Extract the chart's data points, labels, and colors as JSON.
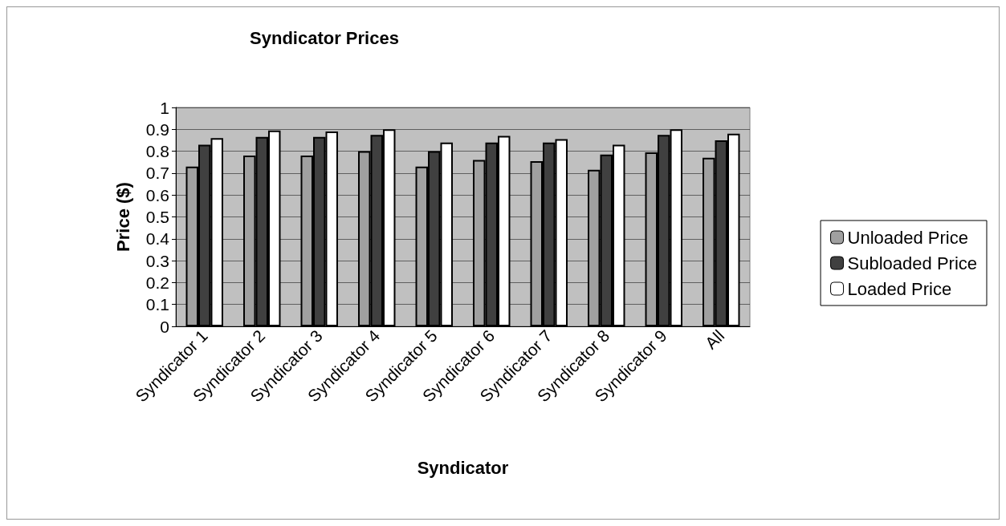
{
  "chart_data": {
    "type": "bar",
    "title": "Syndicator Prices",
    "xlabel": "Syndicator",
    "ylabel": "Price ($)",
    "categories": [
      "Syndicator 1",
      "Syndicator 2",
      "Syndicator 3",
      "Syndicator 4",
      "Syndicator 5",
      "Syndicator 6",
      "Syndicator 7",
      "Syndicator 8",
      "Syndicator 9",
      "All"
    ],
    "series": [
      {
        "name": "Unloaded Price",
        "color": "#a0a0a0",
        "values": [
          0.73,
          0.78,
          0.78,
          0.8,
          0.73,
          0.76,
          0.755,
          0.715,
          0.795,
          0.77
        ]
      },
      {
        "name": "Subloaded Price",
        "color": "#404040",
        "values": [
          0.83,
          0.865,
          0.865,
          0.875,
          0.8,
          0.84,
          0.84,
          0.785,
          0.875,
          0.85
        ]
      },
      {
        "name": "Loaded Price",
        "color": "#ffffff",
        "values": [
          0.86,
          0.895,
          0.89,
          0.9,
          0.84,
          0.87,
          0.855,
          0.83,
          0.9,
          0.88
        ]
      }
    ],
    "ylim": [
      0,
      1
    ],
    "yticks": [
      0,
      0.1,
      0.2,
      0.3,
      0.4,
      0.5,
      0.6,
      0.7,
      0.8,
      0.9,
      1
    ],
    "grid": "y",
    "legend": "right"
  }
}
